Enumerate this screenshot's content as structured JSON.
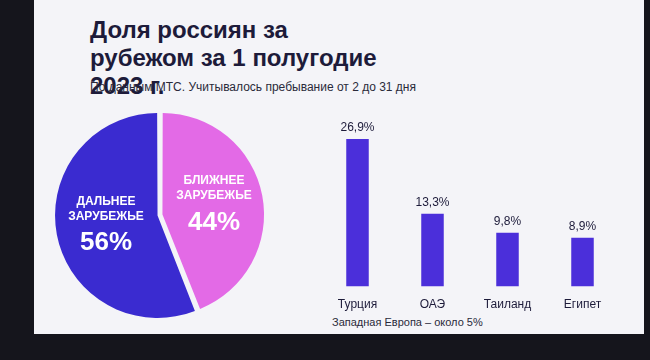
{
  "chart_data": [
    {
      "type": "pie",
      "title": "Доля россиян за рубежом за 1 полугодие 2023 г.",
      "subtitle": "По данным МТС. Учитывалось пребывание от 2 до 31 дня",
      "categories": [
        "БЛИЖНЕЕ ЗАРУБЕЖЬЕ",
        "ДАЛЬНЕЕ ЗАРУБЕЖЬЕ"
      ],
      "values": [
        44,
        56
      ],
      "value_labels": [
        "44%",
        "56%"
      ],
      "colors": [
        "#e36ae6",
        "#3a2bd0"
      ],
      "data_labels": true,
      "legend": false
    },
    {
      "type": "bar",
      "categories": [
        "Турция",
        "ОАЭ",
        "Таиланд",
        "Египет"
      ],
      "values": [
        26.9,
        13.3,
        9.8,
        8.9
      ],
      "value_labels": [
        "26,9%",
        "13,3%",
        "9,8%",
        "8,9%"
      ],
      "color": "#4b2fda",
      "ylim": [
        0,
        30
      ],
      "grid": false,
      "tick_labels": "x",
      "data_labels": true,
      "legend": false,
      "annotation": "Западная Европа – около 5%"
    }
  ]
}
